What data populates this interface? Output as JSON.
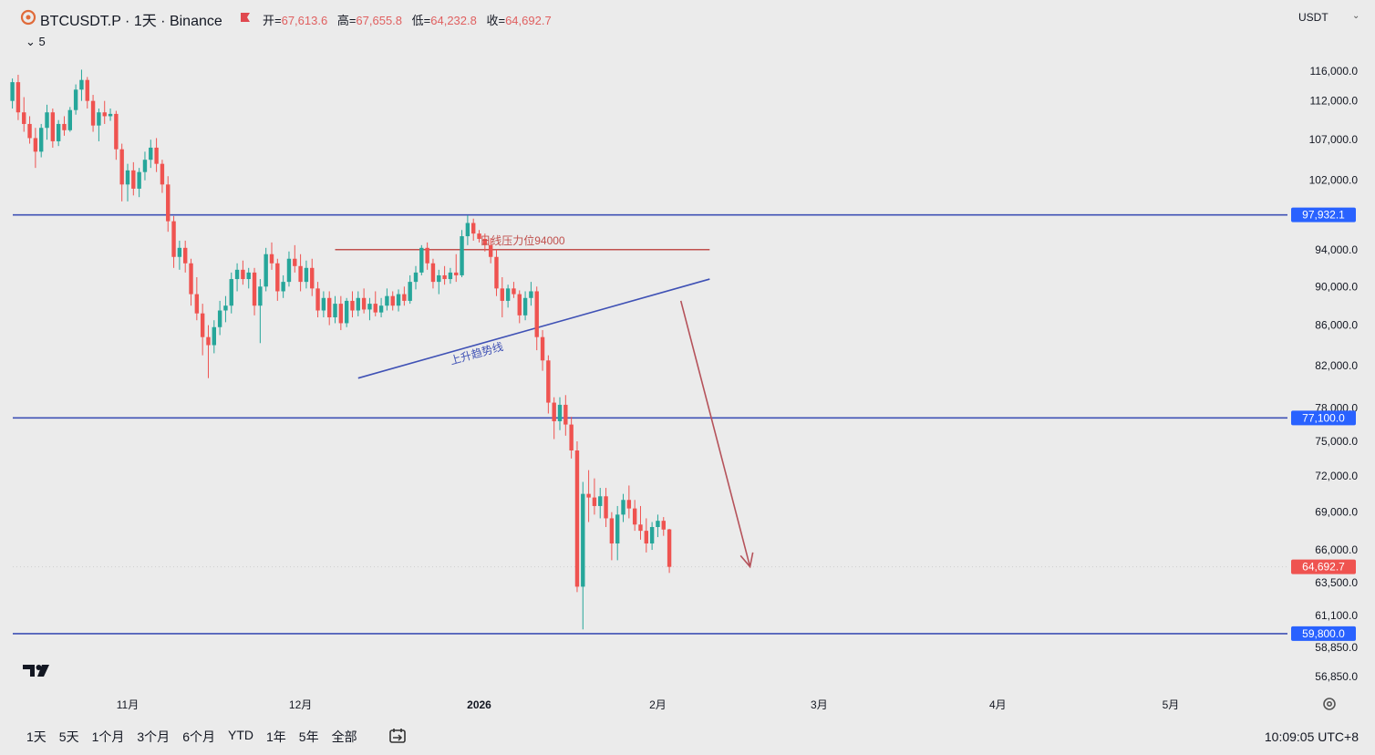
{
  "header": {
    "symbol": "BTCUSDT.P · 1天 · Binance",
    "ohlc": [
      {
        "label": "开=",
        "value": "67,613.6"
      },
      {
        "label": "高=",
        "value": "67,655.8"
      },
      {
        "label": "低=",
        "value": "64,232.8"
      },
      {
        "label": "收=",
        "value": "64,692.7"
      }
    ],
    "collapse_label": "⌄ 5",
    "currency": "USDT",
    "currency_caret": "⌄"
  },
  "colors": {
    "up": "#26a69a",
    "down": "#ef5350",
    "level_line": "#3f51b5",
    "resistance_line": "#c0504d",
    "arrow": "#b5525a",
    "current_price_tag": "#ef5350",
    "level_tag": "#2962ff"
  },
  "chart_data": {
    "type": "candlestick",
    "x_axis_labels": [
      {
        "label": "11月",
        "x": 0
      },
      {
        "label": "12月",
        "x": 30
      },
      {
        "label": "2026",
        "x": 61
      },
      {
        "label": "2月",
        "x": 92
      },
      {
        "label": "3月",
        "x": 120
      },
      {
        "label": "4月",
        "x": 151
      },
      {
        "label": "5月",
        "x": 181
      }
    ],
    "y_axis_labels": [
      "116,000.0",
      "112,000.0",
      "107,000.0",
      "102,000.0",
      "94,000.0",
      "90,000.0",
      "86,000.0",
      "82,000.0",
      "78,000.0",
      "75,000.0",
      "72,000.0",
      "69,000.0",
      "66,000.0",
      "63,500.0",
      "61,100.0",
      "58,850.0",
      "56,850.0"
    ],
    "y_axis_values": [
      116000,
      112000,
      107000,
      102000,
      94000,
      90000,
      86000,
      82000,
      78000,
      75000,
      72000,
      69000,
      66000,
      63500,
      61100,
      58850,
      56850
    ],
    "scale": "log",
    "horizontal_levels": [
      {
        "value": 97932.1,
        "label": "97,932.1"
      },
      {
        "value": 77100.0,
        "label": "77,100.0"
      },
      {
        "value": 59800.0,
        "label": "59,800.0"
      }
    ],
    "current_price": {
      "value": 64692.7,
      "label": "64,692.7"
    },
    "annotations": {
      "resistance": {
        "text": "日线压力位94000",
        "value": 94000,
        "x_start": 36,
        "x_end": 101
      },
      "trendline": {
        "text": "上升趋势线",
        "start": {
          "x": 40,
          "y": 80800
        },
        "end": {
          "x": 101,
          "y": 90800
        }
      },
      "arrow": {
        "start": {
          "x": 96,
          "y": 88500
        },
        "end": {
          "x": 108,
          "y": 64700
        }
      }
    },
    "candles": [
      [
        -20,
        112000,
        115000,
        111000,
        114500
      ],
      [
        -19,
        114500,
        115500,
        109500,
        110500
      ],
      [
        -18,
        110500,
        112500,
        108000,
        109000
      ],
      [
        -17,
        109000,
        110000,
        106500,
        107200
      ],
      [
        -16,
        107200,
        108500,
        103500,
        105500
      ],
      [
        -15,
        105500,
        109000,
        104800,
        108500
      ],
      [
        -14,
        108500,
        111500,
        107000,
        110500
      ],
      [
        -13,
        110500,
        111000,
        106000,
        106800
      ],
      [
        -12,
        106800,
        109500,
        106200,
        109000
      ],
      [
        -11,
        109000,
        110000,
        107500,
        108200
      ],
      [
        -10,
        108200,
        111200,
        108000,
        110800
      ],
      [
        -9,
        110800,
        114200,
        110200,
        113500
      ],
      [
        -8,
        113500,
        116200,
        112000,
        114800
      ],
      [
        -7,
        114800,
        115200,
        111000,
        112000
      ],
      [
        -6,
        112000,
        112800,
        108000,
        108800
      ],
      [
        -5,
        108800,
        111000,
        106800,
        110500
      ],
      [
        -4,
        110500,
        112000,
        109000,
        110000
      ],
      [
        -3,
        110000,
        111000,
        109400,
        110300
      ],
      [
        -2,
        110300,
        110700,
        104500,
        105800
      ],
      [
        -1,
        105800,
        106500,
        99500,
        101500
      ],
      [
        0,
        101500,
        104000,
        99500,
        103200
      ],
      [
        1,
        103200,
        104200,
        100200,
        101000
      ],
      [
        2,
        101000,
        103500,
        100000,
        103000
      ],
      [
        3,
        103000,
        105500,
        102000,
        104500
      ],
      [
        4,
        104500,
        107000,
        103500,
        106000
      ],
      [
        5,
        106000,
        107200,
        103000,
        104000
      ],
      [
        6,
        104000,
        104500,
        100500,
        101500
      ],
      [
        7,
        101500,
        102500,
        96000,
        97200
      ],
      [
        8,
        97200,
        97800,
        92000,
        93200
      ],
      [
        9,
        93200,
        95000,
        91800,
        94200
      ],
      [
        10,
        94200,
        95000,
        91500,
        92500
      ],
      [
        11,
        92500,
        93000,
        88000,
        89200
      ],
      [
        12,
        89200,
        91000,
        86500,
        87200
      ],
      [
        13,
        87200,
        88200,
        83000,
        84800
      ],
      [
        14,
        84800,
        86000,
        80800,
        84000
      ],
      [
        15,
        84000,
        86500,
        83200,
        85800
      ],
      [
        16,
        85800,
        88500,
        85000,
        87500
      ],
      [
        17,
        87500,
        89000,
        86300,
        88000
      ],
      [
        18,
        88000,
        91500,
        87200,
        90800
      ],
      [
        19,
        90800,
        92500,
        89500,
        91800
      ],
      [
        20,
        91800,
        92800,
        90200,
        90800
      ],
      [
        21,
        90800,
        92000,
        89800,
        91500
      ],
      [
        22,
        91500,
        92000,
        87000,
        88000
      ],
      [
        23,
        88000,
        90800,
        84200,
        90000
      ],
      [
        24,
        90000,
        94200,
        89500,
        93500
      ],
      [
        25,
        93500,
        94800,
        91800,
        92500
      ],
      [
        26,
        92500,
        93000,
        88500,
        89500
      ],
      [
        27,
        89500,
        91200,
        88800,
        90500
      ],
      [
        28,
        90500,
        93800,
        90000,
        93000
      ],
      [
        29,
        93000,
        94500,
        91500,
        92200
      ],
      [
        30,
        92200,
        93500,
        89500,
        90500
      ],
      [
        31,
        90500,
        92800,
        89800,
        92000
      ],
      [
        32,
        92000,
        93000,
        89000,
        89800
      ],
      [
        33,
        89800,
        90500,
        86800,
        87500
      ],
      [
        34,
        87500,
        89500,
        86800,
        88800
      ],
      [
        35,
        88800,
        89500,
        86000,
        86800
      ],
      [
        36,
        86800,
        89000,
        86200,
        88200
      ],
      [
        37,
        88200,
        89000,
        85500,
        86200
      ],
      [
        38,
        86200,
        88800,
        85800,
        88500
      ],
      [
        39,
        88500,
        89500,
        86800,
        87500
      ],
      [
        40,
        87500,
        89500,
        86900,
        88800
      ],
      [
        41,
        88800,
        89800,
        87200,
        87600
      ],
      [
        42,
        87600,
        88800,
        86500,
        88200
      ],
      [
        43,
        88200,
        89500,
        86900,
        87300
      ],
      [
        44,
        87300,
        88800,
        86800,
        88000
      ],
      [
        45,
        88000,
        89800,
        87500,
        89000
      ],
      [
        46,
        89000,
        89500,
        87500,
        88000
      ],
      [
        47,
        88000,
        89700,
        87400,
        89200
      ],
      [
        48,
        89200,
        90000,
        88000,
        88500
      ],
      [
        49,
        88500,
        91200,
        88200,
        90500
      ],
      [
        50,
        90500,
        92200,
        89700,
        91500
      ],
      [
        51,
        91500,
        94500,
        91200,
        94200
      ],
      [
        52,
        94200,
        94800,
        91800,
        92500
      ],
      [
        53,
        92500,
        93000,
        89800,
        90500
      ],
      [
        54,
        90500,
        91800,
        89200,
        91200
      ],
      [
        55,
        91200,
        92200,
        90200,
        90800
      ],
      [
        56,
        90800,
        92000,
        90300,
        91500
      ],
      [
        57,
        91500,
        93500,
        90500,
        91200
      ],
      [
        58,
        91200,
        96200,
        91000,
        95500
      ],
      [
        59,
        95500,
        97900,
        94500,
        97000
      ],
      [
        60,
        97000,
        97500,
        95000,
        95800
      ],
      [
        61,
        95800,
        96200,
        94800,
        95200
      ],
      [
        62,
        95200,
        95800,
        93800,
        94500
      ],
      [
        63,
        94500,
        95300,
        92500,
        93200
      ],
      [
        64,
        93200,
        94000,
        89000,
        89800
      ],
      [
        65,
        89800,
        91000,
        86800,
        88500
      ],
      [
        66,
        88500,
        90200,
        87800,
        89800
      ],
      [
        67,
        89800,
        90500,
        88800,
        89200
      ],
      [
        68,
        89200,
        89600,
        86200,
        87000
      ],
      [
        69,
        87000,
        89500,
        86500,
        88800
      ],
      [
        70,
        88800,
        90500,
        88000,
        89500
      ],
      [
        71,
        89500,
        90000,
        83500,
        84800
      ],
      [
        72,
        84800,
        85500,
        81500,
        82500
      ],
      [
        73,
        82500,
        83000,
        77500,
        78500
      ],
      [
        74,
        78500,
        79000,
        75200,
        76800
      ],
      [
        75,
        76800,
        79000,
        76000,
        78300
      ],
      [
        76,
        78300,
        79200,
        75500,
        76500
      ],
      [
        77,
        76500,
        77200,
        73500,
        74200
      ],
      [
        78,
        74200,
        75000,
        62800,
        63200
      ],
      [
        79,
        63200,
        71500,
        60100,
        70500
      ],
      [
        80,
        70500,
        72500,
        68200,
        70200
      ],
      [
        81,
        70200,
        71800,
        68800,
        69500
      ],
      [
        82,
        69500,
        71000,
        68500,
        70300
      ],
      [
        83,
        70300,
        71000,
        67800,
        68500
      ],
      [
        84,
        68500,
        69000,
        65200,
        66500
      ],
      [
        85,
        66500,
        69500,
        65200,
        68800
      ],
      [
        86,
        68800,
        70500,
        68200,
        70000
      ],
      [
        87,
        70000,
        71200,
        68500,
        69300
      ],
      [
        88,
        69300,
        70000,
        67500,
        68000
      ],
      [
        89,
        68000,
        69500,
        66800,
        67500
      ],
      [
        90,
        67500,
        68500,
        65800,
        66500
      ],
      [
        91,
        66500,
        68200,
        66000,
        67800
      ],
      [
        92,
        67800,
        68800,
        67000,
        68300
      ],
      [
        93,
        68300,
        68600,
        67100,
        67600
      ],
      [
        94,
        67613.6,
        67655.8,
        64232.8,
        64692.7
      ]
    ]
  },
  "bottom_bar": {
    "timeframes": [
      "1天",
      "5天",
      "1个月",
      "3个月",
      "6个月",
      "YTD",
      "1年",
      "5年",
      "全部"
    ],
    "clock": "10:09:05 UTC+8"
  }
}
